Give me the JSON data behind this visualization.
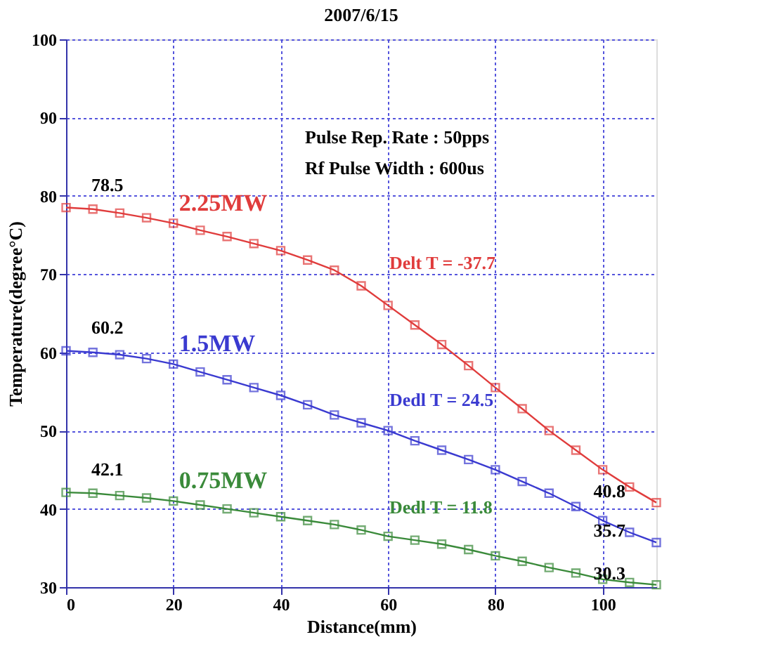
{
  "chart_data": {
    "type": "line",
    "title": "2007/6/15",
    "xlabel": "Distance(mm)",
    "ylabel": "Temperature(degree°C)",
    "x": [
      0,
      5,
      10,
      15,
      20,
      25,
      30,
      35,
      40,
      45,
      50,
      55,
      60,
      65,
      70,
      75,
      80,
      85,
      90,
      95,
      100,
      105,
      110
    ],
    "series": [
      {
        "name": "2.25MW",
        "color": "#e03c3c",
        "values": [
          78.5,
          78.3,
          77.8,
          77.2,
          76.5,
          75.6,
          74.8,
          73.9,
          73,
          71.8,
          70.5,
          68.5,
          66,
          63.5,
          61,
          58.3,
          55.5,
          52.8,
          50,
          47.5,
          45,
          42.8,
          40.8
        ]
      },
      {
        "name": "1.5MW",
        "color": "#3a3ad0",
        "values": [
          60.2,
          60,
          59.7,
          59.2,
          58.5,
          57.5,
          56.5,
          55.5,
          54.5,
          53.3,
          52,
          51,
          50,
          48.7,
          47.5,
          46.3,
          45,
          43.5,
          42,
          40.3,
          38.5,
          37,
          35.7
        ]
      },
      {
        "name": "0.75MW",
        "color": "#3a8a3a",
        "values": [
          42.1,
          42,
          41.7,
          41.4,
          41,
          40.5,
          40,
          39.5,
          39,
          38.5,
          38,
          37.3,
          36.5,
          36,
          35.5,
          34.8,
          34,
          33.3,
          32.5,
          31.8,
          31,
          30.6,
          30.3
        ]
      }
    ],
    "xlim": [
      0,
      110
    ],
    "xticks": [
      0,
      20,
      40,
      60,
      80,
      100
    ],
    "ylim": [
      30,
      100
    ],
    "yticks": [
      30,
      40,
      50,
      60,
      70,
      80,
      90,
      100
    ],
    "grid": true,
    "legend": false,
    "marker": "square",
    "annotations": [
      "Pulse Rep. Rate :  50pps",
      "Rf Pulse Width  : 600us",
      {
        "text": "Delt T = -37.7",
        "x": 55,
        "y": 68.5
      },
      {
        "text": "Dedl T = 24.5",
        "x": 55,
        "y": 51
      },
      {
        "text": "Dedl T = 11.8",
        "x": 55,
        "y": 37.3
      },
      {
        "text": "78.5",
        "x": 0,
        "y": 78.5
      },
      {
        "text": "60.2",
        "x": 0,
        "y": 60.2
      },
      {
        "text": "42.1",
        "x": 0,
        "y": 42.1
      },
      {
        "text": "40.8",
        "x": 110,
        "y": 40.8
      },
      {
        "text": "35.7",
        "x": 110,
        "y": 35.7
      },
      {
        "text": "30.3",
        "x": 110,
        "y": 30.3
      }
    ]
  }
}
